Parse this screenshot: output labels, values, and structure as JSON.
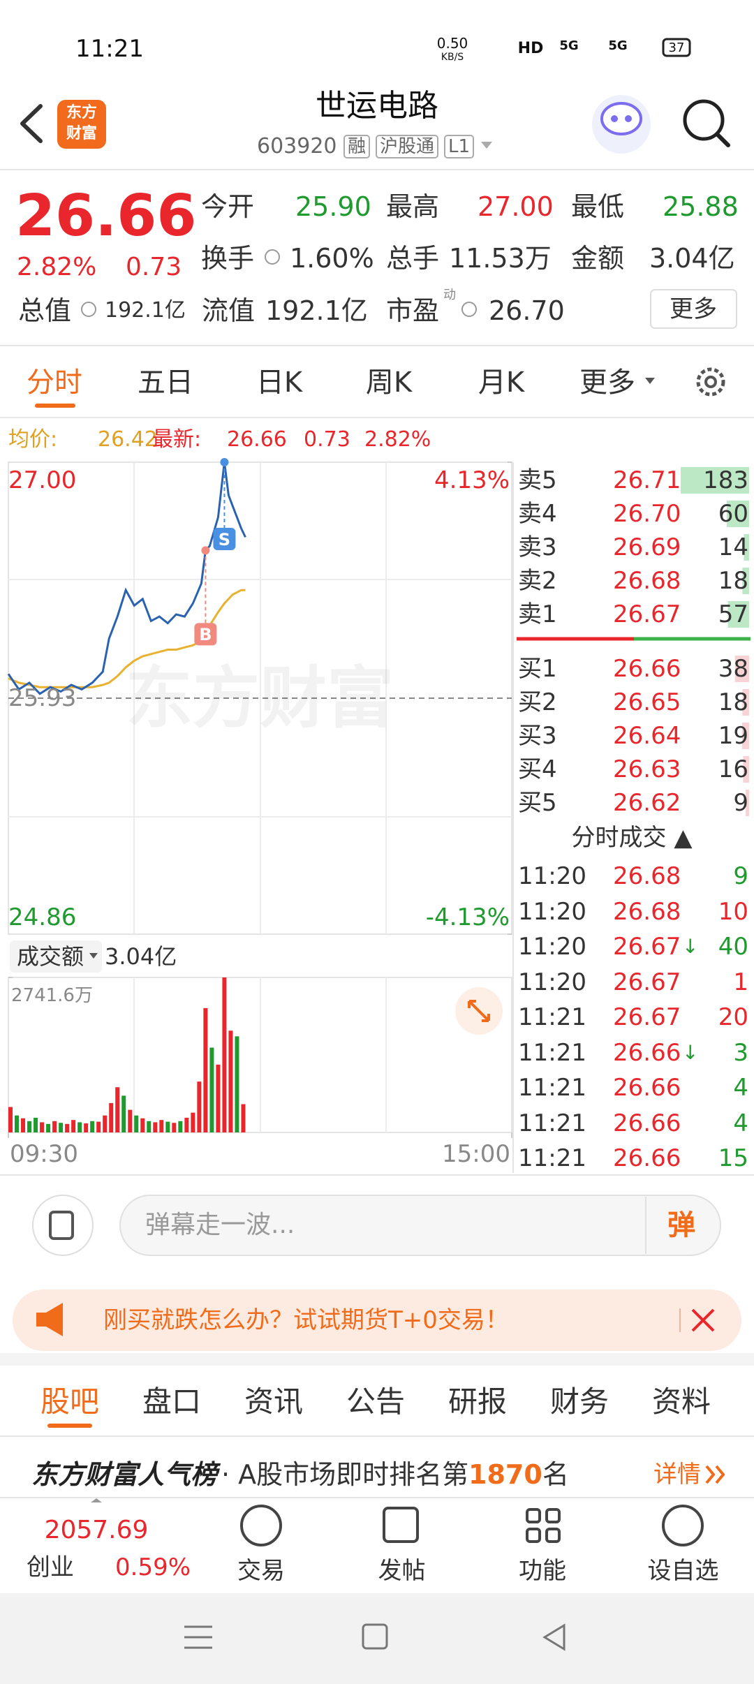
{
  "status_bar": {
    "time": "11:21",
    "net_speed": "0.50",
    "net_unit": "KB/S",
    "hd": "HD",
    "net1": "5G",
    "net2": "5G",
    "battery": "37"
  },
  "header": {
    "logo": [
      "东方",
      "财富"
    ],
    "title": "世运电路",
    "code": "603920",
    "tags": [
      "融",
      "沪股通",
      "L1"
    ]
  },
  "quote": {
    "price": "26.66",
    "change_pct": "2.82%",
    "change": "0.73",
    "more": "更多",
    "fields": [
      [
        {
          "label": "今开",
          "value": "25.90",
          "color": "#1f9a2e"
        },
        {
          "label": "最高",
          "value": "27.00",
          "color": "#e8262b"
        },
        {
          "label": "最低",
          "value": "25.88",
          "color": "#1f9a2e"
        }
      ],
      [
        {
          "label": "换手",
          "value": "1.60%"
        },
        {
          "label": "总手",
          "value": "11.53万"
        },
        {
          "label": "金额",
          "value": "3.04亿"
        }
      ],
      [
        {
          "label": "总值",
          "value": "192.1亿"
        },
        {
          "label": "流值",
          "value": "192.1亿"
        },
        {
          "label": "市盈",
          "sup": "动",
          "value": "26.70"
        }
      ]
    ]
  },
  "tabs": [
    "分时",
    "五日",
    "日K",
    "周K",
    "月K",
    "更多"
  ],
  "info_line": {
    "avg_label": "均价:",
    "avg": "26.42",
    "latest_label": "最新:",
    "latest": "26.66",
    "change": "0.73",
    "change_pct": "2.82%"
  },
  "chart_data": [
    {
      "type": "line",
      "watermark": "东方财富",
      "x": [
        0,
        5,
        10,
        15,
        20,
        25,
        30,
        35,
        40,
        45,
        48,
        52,
        56,
        60,
        64,
        68,
        72,
        76,
        80,
        84,
        88,
        92,
        94,
        96,
        100,
        103,
        105,
        107,
        109,
        111,
        113
      ],
      "series": [
        {
          "color": "#2a62b0",
          "values": [
            26.04,
            25.97,
            26.0,
            25.95,
            25.98,
            25.96,
            25.99,
            25.97,
            26.0,
            26.05,
            26.2,
            26.3,
            26.42,
            26.35,
            26.38,
            26.28,
            26.3,
            26.27,
            26.31,
            26.3,
            26.36,
            26.45,
            26.6,
            26.62,
            26.75,
            27.0,
            26.85,
            26.8,
            26.75,
            26.7,
            26.66
          ]
        },
        {
          "color": "#e8b230",
          "values": [
            26.02,
            26.0,
            25.99,
            25.98,
            25.98,
            25.98,
            25.98,
            25.98,
            25.98,
            25.99,
            26.0,
            26.03,
            26.07,
            26.1,
            26.12,
            26.13,
            26.14,
            26.15,
            26.15,
            26.16,
            26.17,
            26.19,
            26.22,
            26.26,
            26.32,
            26.36,
            26.38,
            26.4,
            26.41,
            26.42,
            26.42
          ]
        }
      ],
      "xlim": [
        0,
        240
      ],
      "xticks": [
        {
          "value": 0,
          "label": "09:30"
        },
        {
          "value": 240,
          "label": "15:00"
        }
      ],
      "ylim": [
        24.86,
        27.0
      ],
      "yticks": [
        {
          "value": 27.0,
          "label": "27.00"
        },
        {
          "value": 25.93,
          "label": "25.93"
        },
        {
          "value": 24.86,
          "label": "24.86"
        }
      ],
      "y2lim": [
        -4.13,
        4.13
      ],
      "y2ticks": [
        {
          "value": 4.13,
          "label": "4.13%"
        },
        {
          "value": -4.13,
          "label": "-4.13%"
        }
      ],
      "markers": [
        {
          "label": "B",
          "x": 94,
          "value": 26.6,
          "color": "#f08a7e"
        },
        {
          "label": "S",
          "x": 103,
          "value": 27.0,
          "color": "#4a90e2"
        }
      ]
    },
    {
      "type": "bar",
      "label": "成交额",
      "total": "3.04亿",
      "x": [
        0,
        3,
        6,
        9,
        12,
        15,
        18,
        21,
        24,
        27,
        30,
        33,
        36,
        39,
        42,
        45,
        48,
        51,
        54,
        57,
        60,
        63,
        66,
        69,
        72,
        75,
        78,
        81,
        84,
        87,
        90,
        93,
        96,
        99,
        102,
        105,
        108,
        111
      ],
      "values": [
        450,
        300,
        250,
        200,
        260,
        180,
        150,
        200,
        170,
        150,
        220,
        180,
        160,
        200,
        190,
        300,
        520,
        800,
        650,
        400,
        300,
        250,
        200,
        180,
        220,
        190,
        170,
        200,
        260,
        350,
        900,
        2200,
        1500,
        1200,
        2741.6,
        1800,
        1700,
        500
      ],
      "colors": [
        "#e8262b",
        "#1f9a2e",
        "#e8262b",
        "#1f9a2e",
        "#1f9a2e",
        "#e8262b",
        "#1f9a2e",
        "#e8262b",
        "#1f9a2e",
        "#e8262b",
        "#e8262b",
        "#1f9a2e",
        "#e8262b",
        "#1f9a2e",
        "#e8262b",
        "#e8262b",
        "#e8262b",
        "#e8262b",
        "#1f9a2e",
        "#e8262b",
        "#1f9a2e",
        "#e8262b",
        "#1f9a2e",
        "#e8262b",
        "#e8262b",
        "#1f9a2e",
        "#e8262b",
        "#1f9a2e",
        "#e8262b",
        "#e8262b",
        "#e8262b",
        "#e8262b",
        "#1f9a2e",
        "#e8262b",
        "#e8262b",
        "#e8262b",
        "#1f9a2e",
        "#e8262b"
      ],
      "xlim": [
        0,
        240
      ],
      "ylim": [
        0,
        2741.6
      ],
      "yticks": [
        {
          "value": 2741.6,
          "label": "2741.6万"
        }
      ]
    }
  ],
  "order_book": {
    "asks": [
      {
        "label": "卖5",
        "price": "26.71",
        "volume": 183
      },
      {
        "label": "卖4",
        "price": "26.70",
        "volume": 60
      },
      {
        "label": "卖3",
        "price": "26.69",
        "volume": 14
      },
      {
        "label": "卖2",
        "price": "26.68",
        "volume": 18
      },
      {
        "label": "卖1",
        "price": "26.67",
        "volume": 57
      }
    ],
    "bids": [
      {
        "label": "买1",
        "price": "26.66",
        "volume": 38
      },
      {
        "label": "买2",
        "price": "26.65",
        "volume": 18
      },
      {
        "label": "买3",
        "price": "26.64",
        "volume": 19
      },
      {
        "label": "买4",
        "price": "26.63",
        "volume": 16
      },
      {
        "label": "买5",
        "price": "26.62",
        "volume": 9
      }
    ]
  },
  "trades": {
    "title": "分时成交 ▲",
    "rows": [
      {
        "time": "11:20",
        "price": "26.68",
        "volume": 9,
        "color": "#1f9a2e"
      },
      {
        "time": "11:20",
        "price": "26.68",
        "volume": 10,
        "color": "#e8262b"
      },
      {
        "time": "11:20",
        "price": "26.67",
        "arrow": "↓",
        "volume": 40,
        "color": "#1f9a2e"
      },
      {
        "time": "11:20",
        "price": "26.67",
        "volume": 1,
        "color": "#e8262b"
      },
      {
        "time": "11:21",
        "price": "26.67",
        "volume": 20,
        "color": "#e8262b"
      },
      {
        "time": "11:21",
        "price": "26.66",
        "arrow": "↓",
        "volume": 3,
        "color": "#1f9a2e"
      },
      {
        "time": "11:21",
        "price": "26.66",
        "volume": 4,
        "color": "#1f9a2e"
      },
      {
        "time": "11:21",
        "price": "26.66",
        "volume": 4,
        "color": "#1f9a2e"
      },
      {
        "time": "11:21",
        "price": "26.66",
        "volume": 15,
        "color": "#1f9a2e"
      }
    ]
  },
  "comment": {
    "placeholder": "弹幕走一波...",
    "button": "弹"
  },
  "banner": {
    "text": "刚买就跌怎么办？试试期货T+0交易！"
  },
  "bottom_tabs": [
    "股吧",
    "盘口",
    "资讯",
    "公告",
    "研报",
    "财务",
    "资料"
  ],
  "ranking": {
    "brand": "东方财富人气榜",
    "text": "· A股市场即时排名第",
    "rank": "1870",
    "suffix": "名",
    "link": "详情"
  },
  "bottom_nav": {
    "index_value": "2057.69",
    "index_name": "创业",
    "index_change": "0.59%",
    "items": [
      "交易",
      "发帖",
      "功能",
      "设自选"
    ]
  }
}
